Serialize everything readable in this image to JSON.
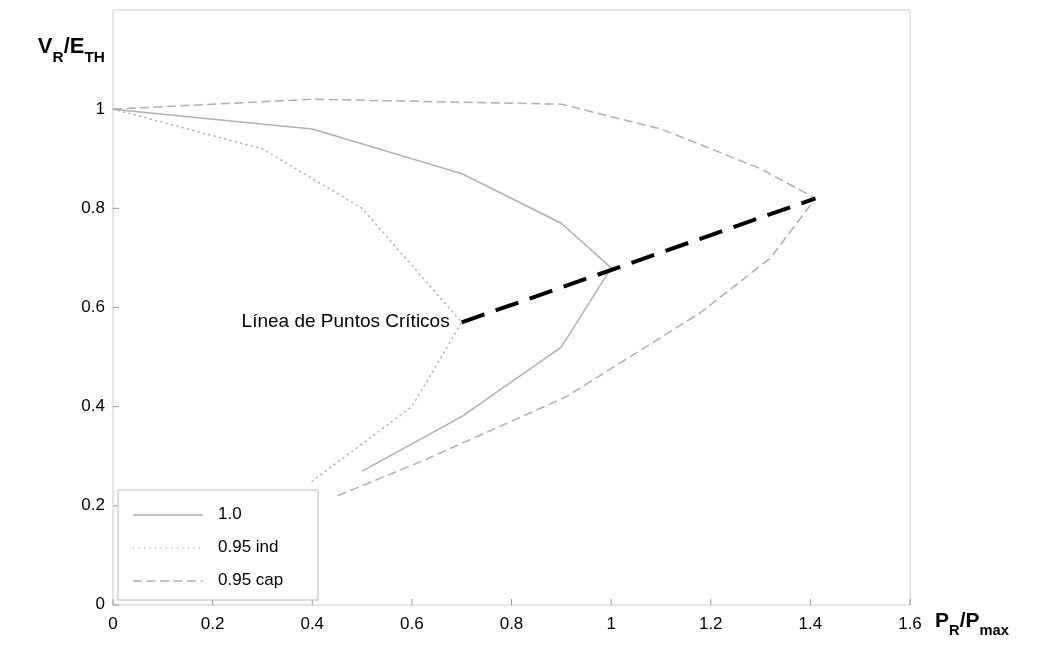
{
  "chart_data": {
    "type": "line",
    "xlabel": "P$_{R}$/P$_{max}$",
    "ylabel": "V$_{R}$/E$_{TH}$",
    "xlim": [
      0,
      1.6
    ],
    "ylim": [
      0,
      1.2
    ],
    "xticks": [
      0,
      0.2,
      0.4,
      0.6,
      0.8,
      1,
      1.2,
      1.4,
      1.6
    ],
    "yticks": [
      0,
      0.2,
      0.4,
      0.6,
      0.8,
      1
    ],
    "legend": "bottom left",
    "grid": false,
    "marker": "none",
    "annotations": [
      {
        "text": "Línea de Puntos Críticos",
        "x": 0.7,
        "y": 0.57
      }
    ],
    "series": [
      {
        "name": "1.0",
        "color": "#b0b0b0",
        "line_style": "solid",
        "x": [
          0,
          0.4,
          0.7,
          0.9,
          1.0,
          0.9,
          0.7,
          0.5
        ],
        "values": [
          1,
          0.96,
          0.87,
          0.77,
          0.68,
          0.52,
          0.38,
          0.27
        ]
      },
      {
        "name": "0.95 ind",
        "color": "#b0b0b0",
        "line_style": "dotted",
        "x": [
          0,
          0.3,
          0.5,
          0.7,
          0.6,
          0.4
        ],
        "values": [
          1,
          0.92,
          0.8,
          0.57,
          0.4,
          0.25
        ]
      },
      {
        "name": "0.95 cap",
        "color": "#b0b0b0",
        "line_style": "dashed",
        "x": [
          0,
          0.4,
          0.9,
          1.1,
          1.3,
          1.41,
          1.32,
          1.18,
          0.91,
          0.62,
          0.45
        ],
        "values": [
          1,
          1.02,
          1.01,
          0.96,
          0.88,
          0.82,
          0.7,
          0.59,
          0.42,
          0.29,
          0.22
        ]
      },
      {
        "color": "#000000",
        "line_style": "dashed",
        "x": [
          0.7,
          1.41
        ],
        "values": [
          0.57,
          0.82
        ]
      }
    ]
  }
}
